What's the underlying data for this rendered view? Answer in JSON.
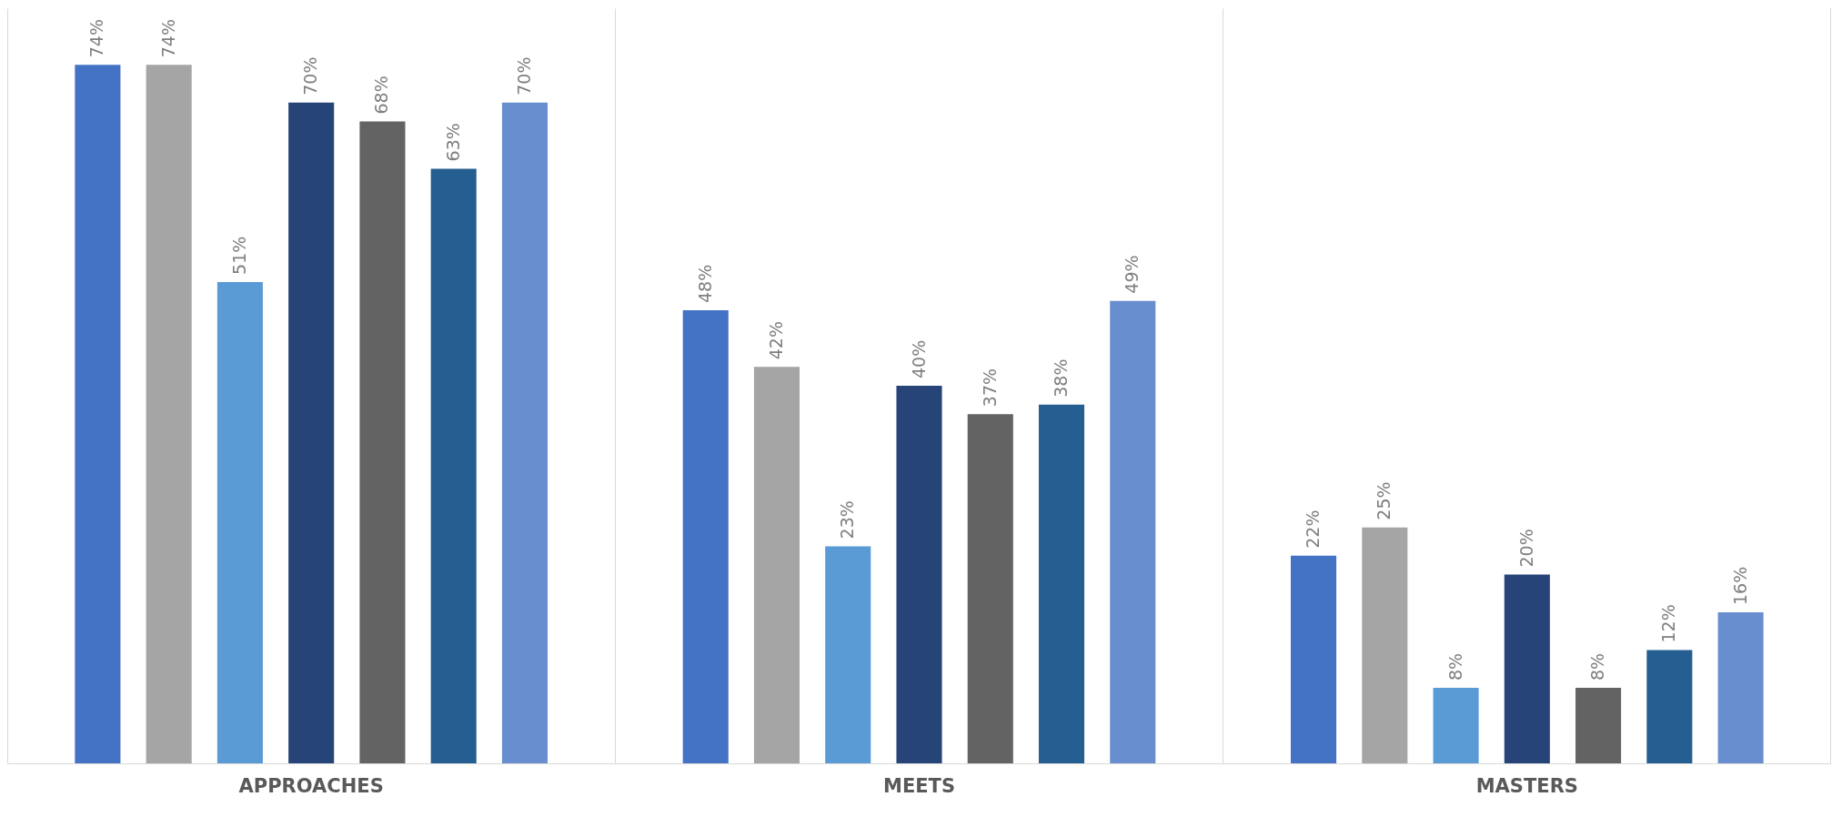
{
  "chart_data": {
    "type": "bar",
    "categories": [
      "APPROACHES",
      "MEETS",
      "MASTERS"
    ],
    "series": [
      {
        "color": "#4472c4",
        "values": [
          74,
          48,
          22
        ],
        "value_labels": [
          "74%",
          "48%",
          "22%"
        ]
      },
      {
        "color": "#a5a5a5",
        "values": [
          74,
          42,
          25
        ],
        "value_labels": [
          "74%",
          "42%",
          "25%"
        ]
      },
      {
        "color": "#5b9bd5",
        "values": [
          51,
          23,
          8
        ],
        "value_labels": [
          "51%",
          "23%",
          "8%"
        ]
      },
      {
        "color": "#264478",
        "values": [
          70,
          40,
          20
        ],
        "value_labels": [
          "70%",
          "40%",
          "20%"
        ]
      },
      {
        "color": "#636363",
        "values": [
          68,
          37,
          8
        ],
        "value_labels": [
          "68%",
          "37%",
          "8%"
        ]
      },
      {
        "color": "#255e91",
        "values": [
          63,
          38,
          12
        ],
        "value_labels": [
          "63%",
          "38%",
          "12%"
        ]
      },
      {
        "color": "#698ed0",
        "values": [
          70,
          49,
          16
        ],
        "value_labels": [
          "70%",
          "49%",
          "16%"
        ]
      }
    ],
    "ylim": [
      0,
      80
    ],
    "grid": "x"
  }
}
